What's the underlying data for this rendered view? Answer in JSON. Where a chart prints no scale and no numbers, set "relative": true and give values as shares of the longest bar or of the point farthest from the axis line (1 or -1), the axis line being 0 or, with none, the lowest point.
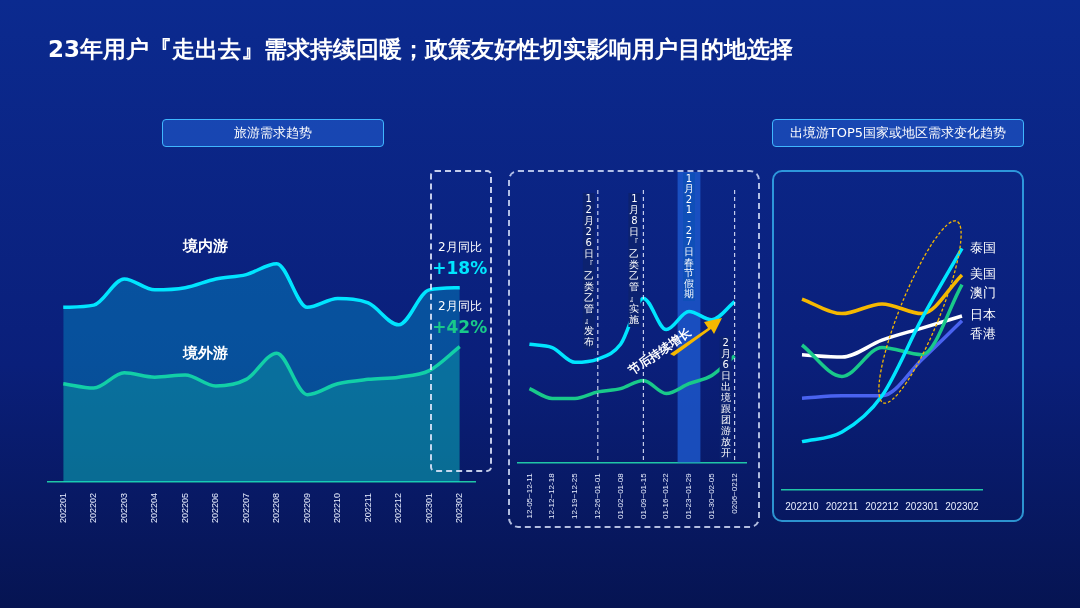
{
  "chart_data": [
    {
      "type": "area",
      "title": "23年用户『走出去』需求持续回暖；政策友好性切实影响用户目的地选择",
      "subtitle": "旅游需求趋势",
      "relative": true,
      "categories": [
        "202201",
        "202202",
        "202203",
        "202204",
        "202205",
        "202206",
        "202207",
        "202208",
        "202209",
        "202210",
        "202211",
        "202212",
        "202301",
        "202302"
      ],
      "series": [
        {
          "name": "境内游",
          "color": "#00e5ff",
          "values": [
            0.8,
            0.81,
            0.93,
            0.88,
            0.89,
            0.93,
            0.95,
            1,
            0.8,
            0.84,
            0.82,
            0.72,
            0.88,
            0.89
          ]
        },
        {
          "name": "境外游",
          "color": "#19c98a",
          "values": [
            0.45,
            0.43,
            0.5,
            0.48,
            0.49,
            0.44,
            0.47,
            0.59,
            0.4,
            0.45,
            0.47,
            0.48,
            0.51,
            0.62
          ]
        }
      ],
      "annotations": [
        "2月同比\n+18%",
        "2月同比\n+42%"
      ]
    },
    {
      "type": "line",
      "relative": true,
      "categories": [
        "12-05~12-11",
        "12-12~12-18",
        "12-19~12-25",
        "12-26~01-01",
        "01-02~01-08",
        "01-09~01-15",
        "01-16~01-22",
        "01-23~01-29",
        "01-30~02-05",
        "0206~0212"
      ],
      "series": [
        {
          "color": "#00e5ff",
          "values": [
            0.72,
            0.7,
            0.61,
            0.63,
            0.72,
            1,
            0.81,
            0.92,
            0.87,
            0.98
          ]
        },
        {
          "color": "#19c98a",
          "values": [
            0.45,
            0.39,
            0.39,
            0.43,
            0.45,
            0.5,
            0.42,
            0.48,
            0.53,
            0.65
          ]
        }
      ],
      "ref_lines": [
        {
          "axis": "x",
          "value": "12-26~01-01",
          "label": "12月26日『乙类乙管』发布"
        },
        {
          "axis": "x",
          "value": "01-09~01-15",
          "label": "1月8日『乙类乙管』实施"
        },
        {
          "axis": "x",
          "value": "0206~0212",
          "label": "2月6日出境跟团游放开"
        }
      ],
      "bands": [
        {
          "axis": "x",
          "from": "01-23~01-29",
          "to": "01-23~01-29",
          "label": "1月21-27日春节假期",
          "color": "#1f5fd8"
        }
      ],
      "annotations": [
        "节后持续增长"
      ]
    },
    {
      "type": "line",
      "title": "出境游TOP5国家或地区需求变化趋势",
      "relative": true,
      "categories": [
        "202210",
        "202211",
        "202212",
        "202301",
        "202302"
      ],
      "series": [
        {
          "name": "泰国",
          "color": "#00e5ff",
          "values": [
            0.2,
            0.24,
            0.39,
            0.71,
            1
          ]
        },
        {
          "name": "美国",
          "color": "#f5b800",
          "values": [
            0.79,
            0.73,
            0.77,
            0.73,
            0.89
          ]
        },
        {
          "name": "澳门",
          "color": "#19c98a",
          "values": [
            0.6,
            0.47,
            0.59,
            0.56,
            0.85
          ]
        },
        {
          "name": "日本",
          "color": "#ffffff",
          "values": [
            0.56,
            0.55,
            0.62,
            0.67,
            0.72
          ]
        },
        {
          "name": "香港",
          "color": "#4a63f0",
          "values": [
            0.38,
            0.39,
            0.39,
            0.54,
            0.7
          ]
        }
      ]
    }
  ]
}
